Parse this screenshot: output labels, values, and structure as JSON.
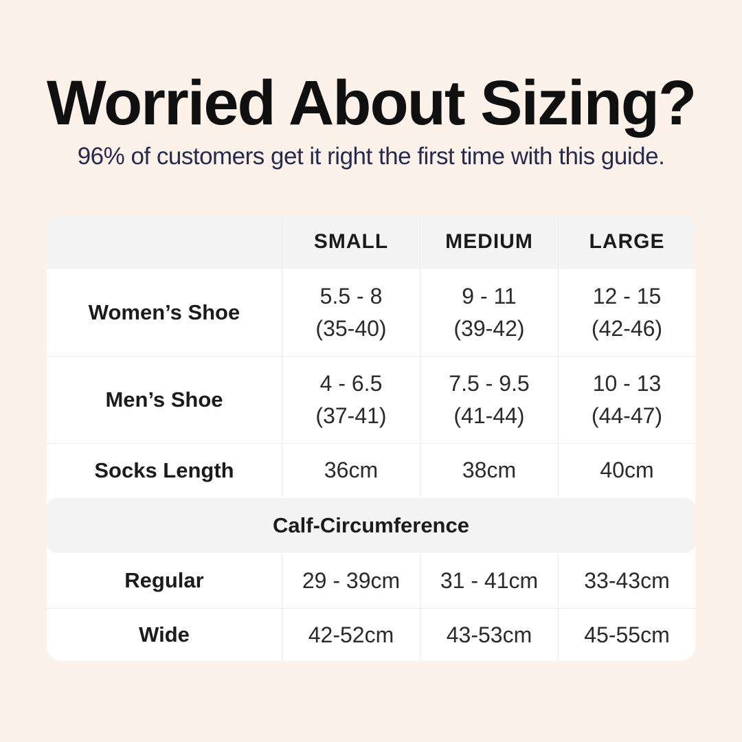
{
  "colors": {
    "background": "#fdf2ea",
    "card": "#ffffff",
    "band_gray": "#f4f4f5",
    "border": "#ececec",
    "title_text": "#101010",
    "subtitle_text": "#262b4e",
    "table_text": "#1f1f1f"
  },
  "header": {
    "title": "Worried About Sizing?",
    "subtitle": "96% of customers get it right the first time with this guide."
  },
  "table": {
    "columns": [
      "",
      "SMALL",
      "MEDIUM",
      "LARGE"
    ],
    "rows": [
      {
        "label": "Women’s Shoe",
        "small": {
          "line1": "5.5 - 8",
          "line2": "(35-40)"
        },
        "medium": {
          "line1": "9 - 11",
          "line2": "(39-42)"
        },
        "large": {
          "line1": "12 - 15",
          "line2": "(42-46)"
        }
      },
      {
        "label": "Men’s Shoe",
        "small": {
          "line1": "4 - 6.5",
          "line2": "(37-41)"
        },
        "medium": {
          "line1": "7.5 - 9.5",
          "line2": "(41-44)"
        },
        "large": {
          "line1": "10 - 13",
          "line2": "(44-47)"
        }
      },
      {
        "label": "Socks Length",
        "small": {
          "line1": "36cm"
        },
        "medium": {
          "line1": "38cm"
        },
        "large": {
          "line1": "40cm"
        }
      }
    ],
    "calf_section": {
      "title": "Calf-Circumference",
      "rows": [
        {
          "label": "Regular",
          "small": "29 - 39cm",
          "medium": "31 - 41cm",
          "large": "33-43cm"
        },
        {
          "label": "Wide",
          "small": "42-52cm",
          "medium": "43-53cm",
          "large": "45-55cm"
        }
      ]
    }
  },
  "chart_data": {
    "type": "table",
    "title": "Worried About Sizing?",
    "subtitle": "96% of customers get it right the first time with this guide.",
    "columns": [
      "",
      "SMALL",
      "MEDIUM",
      "LARGE"
    ],
    "rows": [
      [
        "Women’s Shoe",
        "5.5 - 8 (35-40)",
        "9 - 11 (39-42)",
        "12 - 15 (42-46)"
      ],
      [
        "Men’s Shoe",
        "4 - 6.5 (37-41)",
        "7.5 - 9.5 (41-44)",
        "10 - 13 (44-47)"
      ],
      [
        "Socks Length",
        "36cm",
        "38cm",
        "40cm"
      ],
      [
        "Calf-Circumference",
        "",
        "",
        ""
      ],
      [
        "Regular",
        "29 - 39cm",
        "31 - 41cm",
        "33-43cm"
      ],
      [
        "Wide",
        "42-52cm",
        "43-53cm",
        "45-55cm"
      ]
    ],
    "layout": {
      "header_fill": "#f4f4f5",
      "section_band_fill": "#f4f4f5",
      "grid": "on"
    }
  }
}
